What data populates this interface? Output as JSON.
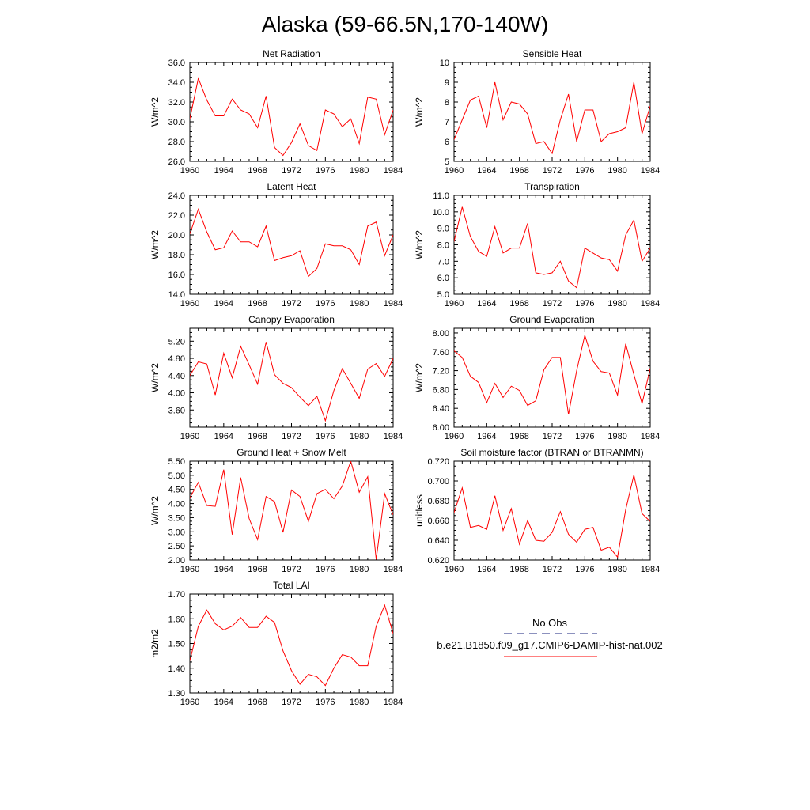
{
  "title": "Alaska (59-66.5N,170-140W)",
  "legend": {
    "entries": [
      {
        "label": "No Obs",
        "color": "#1a237e",
        "dash": true
      },
      {
        "label": "b.e21.B1850.f09_g17.CMIP6-DAMIP-hist-nat.002",
        "color": "#ff0000",
        "dash": false
      }
    ]
  },
  "chart_data": [
    {
      "type": "line",
      "title": "Net Radiation",
      "ylabel": "W/m^2",
      "x": [
        1960,
        1961,
        1962,
        1963,
        1964,
        1965,
        1966,
        1967,
        1968,
        1969,
        1970,
        1971,
        1972,
        1973,
        1974,
        1975,
        1976,
        1977,
        1978,
        1979,
        1980,
        1981,
        1982,
        1983,
        1984
      ],
      "xlim": [
        1960,
        1984
      ],
      "xticks": [
        "1960",
        "1964",
        "1968",
        "1972",
        "1976",
        "1980",
        "1984"
      ],
      "ylim": [
        26,
        36
      ],
      "yticks": [
        "26.0",
        "28.0",
        "30.0",
        "32.0",
        "34.0",
        "36.0"
      ],
      "series": [
        {
          "color": "#ff0000",
          "values": [
            30.3,
            34.4,
            32.2,
            30.6,
            30.6,
            32.3,
            31.2,
            30.8,
            29.4,
            32.6,
            27.4,
            26.6,
            27.9,
            29.8,
            27.6,
            27.1,
            31.2,
            30.8,
            29.5,
            30.3,
            27.8,
            32.5,
            32.3,
            28.7,
            31.2
          ]
        }
      ]
    },
    {
      "type": "line",
      "title": "Sensible Heat",
      "ylabel": "W/m^2",
      "x": [
        1960,
        1961,
        1962,
        1963,
        1964,
        1965,
        1966,
        1967,
        1968,
        1969,
        1970,
        1971,
        1972,
        1973,
        1974,
        1975,
        1976,
        1977,
        1978,
        1979,
        1980,
        1981,
        1982,
        1983,
        1984
      ],
      "xlim": [
        1960,
        1984
      ],
      "xticks": [
        "1960",
        "1964",
        "1968",
        "1972",
        "1976",
        "1980",
        "1984"
      ],
      "ylim": [
        5,
        10
      ],
      "yticks": [
        "5",
        "6",
        "7",
        "8",
        "9",
        "10"
      ],
      "series": [
        {
          "color": "#ff0000",
          "values": [
            6.1,
            7.1,
            8.1,
            8.3,
            6.7,
            9.0,
            7.1,
            8.0,
            7.9,
            7.4,
            5.9,
            6.0,
            5.4,
            7.1,
            8.4,
            6.0,
            7.6,
            7.6,
            6.0,
            6.4,
            6.5,
            6.7,
            9.0,
            6.4,
            7.8
          ]
        }
      ]
    },
    {
      "type": "line",
      "title": "Latent Heat",
      "ylabel": "W/m^2",
      "x": [
        1960,
        1961,
        1962,
        1963,
        1964,
        1965,
        1966,
        1967,
        1968,
        1969,
        1970,
        1971,
        1972,
        1973,
        1974,
        1975,
        1976,
        1977,
        1978,
        1979,
        1980,
        1981,
        1982,
        1983,
        1984
      ],
      "xlim": [
        1960,
        1984
      ],
      "xticks": [
        "1960",
        "1964",
        "1968",
        "1972",
        "1976",
        "1980",
        "1984"
      ],
      "ylim": [
        14,
        24
      ],
      "yticks": [
        "14.0",
        "16.0",
        "18.0",
        "20.0",
        "22.0",
        "24.0"
      ],
      "series": [
        {
          "color": "#ff0000",
          "values": [
            20.1,
            22.6,
            20.3,
            18.5,
            18.7,
            20.4,
            19.3,
            19.3,
            18.8,
            20.9,
            17.4,
            17.7,
            17.9,
            18.4,
            15.8,
            16.6,
            19.1,
            18.9,
            18.9,
            18.5,
            17.0,
            20.9,
            21.3,
            17.9,
            20.0
          ]
        }
      ]
    },
    {
      "type": "line",
      "title": "Transpiration",
      "ylabel": "W/m^2",
      "x": [
        1960,
        1961,
        1962,
        1963,
        1964,
        1965,
        1966,
        1967,
        1968,
        1969,
        1970,
        1971,
        1972,
        1973,
        1974,
        1975,
        1976,
        1977,
        1978,
        1979,
        1980,
        1981,
        1982,
        1983,
        1984
      ],
      "xlim": [
        1960,
        1984
      ],
      "xticks": [
        "1960",
        "1964",
        "1968",
        "1972",
        "1976",
        "1980",
        "1984"
      ],
      "ylim": [
        5,
        11
      ],
      "yticks": [
        "5.0",
        "6.0",
        "7.0",
        "8.0",
        "9.0",
        "10.0",
        "11.0"
      ],
      "series": [
        {
          "color": "#ff0000",
          "values": [
            8.2,
            10.3,
            8.5,
            7.6,
            7.3,
            9.1,
            7.5,
            7.8,
            7.8,
            9.3,
            6.3,
            6.2,
            6.3,
            7.0,
            5.8,
            5.4,
            7.8,
            7.5,
            7.2,
            7.1,
            6.4,
            8.6,
            9.5,
            7.0,
            7.8
          ]
        }
      ]
    },
    {
      "type": "line",
      "title": "Canopy Evaporation",
      "ylabel": "W/m^2",
      "x": [
        1960,
        1961,
        1962,
        1963,
        1964,
        1965,
        1966,
        1967,
        1968,
        1969,
        1970,
        1971,
        1972,
        1973,
        1974,
        1975,
        1976,
        1977,
        1978,
        1979,
        1980,
        1981,
        1982,
        1983,
        1984
      ],
      "xlim": [
        1960,
        1984
      ],
      "xticks": [
        "1960",
        "1964",
        "1968",
        "1972",
        "1976",
        "1980",
        "1984"
      ],
      "ylim": [
        3.2,
        5.5
      ],
      "yticks": [
        "3.60",
        "4.00",
        "4.40",
        "4.80",
        "5.20"
      ],
      "series": [
        {
          "color": "#ff0000",
          "values": [
            4.4,
            4.72,
            4.67,
            3.95,
            4.92,
            4.35,
            5.08,
            4.65,
            4.2,
            5.18,
            4.42,
            4.22,
            4.12,
            3.9,
            3.7,
            3.92,
            3.35,
            4.05,
            4.56,
            4.22,
            3.87,
            4.55,
            4.68,
            4.38,
            4.8
          ]
        }
      ]
    },
    {
      "type": "line",
      "title": "Ground Evaporation",
      "ylabel": "W/m^2",
      "x": [
        1960,
        1961,
        1962,
        1963,
        1964,
        1965,
        1966,
        1967,
        1968,
        1969,
        1970,
        1971,
        1972,
        1973,
        1974,
        1975,
        1976,
        1977,
        1978,
        1979,
        1980,
        1981,
        1982,
        1983,
        1984
      ],
      "xlim": [
        1960,
        1984
      ],
      "xticks": [
        "1960",
        "1964",
        "1968",
        "1972",
        "1976",
        "1980",
        "1984"
      ],
      "ylim": [
        6.0,
        8.1
      ],
      "yticks": [
        "6.00",
        "6.40",
        "6.80",
        "7.20",
        "7.60",
        "8.00"
      ],
      "series": [
        {
          "color": "#ff0000",
          "values": [
            7.62,
            7.48,
            7.08,
            6.95,
            6.52,
            6.93,
            6.63,
            6.87,
            6.78,
            6.46,
            6.56,
            7.22,
            7.48,
            7.48,
            6.27,
            7.2,
            7.95,
            7.4,
            7.18,
            7.15,
            6.68,
            7.77,
            7.12,
            6.5,
            7.25
          ]
        }
      ]
    },
    {
      "type": "line",
      "title": "Ground Heat + Snow Melt",
      "ylabel": "W/m^2",
      "x": [
        1960,
        1961,
        1962,
        1963,
        1964,
        1965,
        1966,
        1967,
        1968,
        1969,
        1970,
        1971,
        1972,
        1973,
        1974,
        1975,
        1976,
        1977,
        1978,
        1979,
        1980,
        1981,
        1982,
        1983,
        1984
      ],
      "xlim": [
        1960,
        1984
      ],
      "xticks": [
        "1960",
        "1964",
        "1968",
        "1972",
        "1976",
        "1980",
        "1984"
      ],
      "ylim": [
        2.0,
        5.5
      ],
      "yticks": [
        "2.00",
        "2.50",
        "3.00",
        "3.50",
        "4.00",
        "4.50",
        "5.00",
        "5.50"
      ],
      "series": [
        {
          "color": "#ff0000",
          "values": [
            4.2,
            4.75,
            3.93,
            3.9,
            5.2,
            2.9,
            4.92,
            3.47,
            2.72,
            4.25,
            4.07,
            2.98,
            4.48,
            4.25,
            3.37,
            4.35,
            4.5,
            4.17,
            4.62,
            5.5,
            4.4,
            4.95,
            2.02,
            4.35,
            3.6
          ]
        }
      ]
    },
    {
      "type": "line",
      "title": "Soil moisture factor (BTRAN or BTRANMN)",
      "ylabel": "unitless",
      "x": [
        1960,
        1961,
        1962,
        1963,
        1964,
        1965,
        1966,
        1967,
        1968,
        1969,
        1970,
        1971,
        1972,
        1973,
        1974,
        1975,
        1976,
        1977,
        1978,
        1979,
        1980,
        1981,
        1982,
        1983,
        1984
      ],
      "xlim": [
        1960,
        1984
      ],
      "xticks": [
        "1960",
        "1964",
        "1968",
        "1972",
        "1976",
        "1980",
        "1984"
      ],
      "ylim": [
        0.62,
        0.72
      ],
      "yticks": [
        "0.620",
        "0.640",
        "0.660",
        "0.680",
        "0.700",
        "0.720"
      ],
      "series": [
        {
          "color": "#ff0000",
          "values": [
            0.668,
            0.693,
            0.653,
            0.655,
            0.651,
            0.685,
            0.65,
            0.672,
            0.636,
            0.66,
            0.64,
            0.639,
            0.648,
            0.669,
            0.646,
            0.638,
            0.651,
            0.653,
            0.63,
            0.633,
            0.623,
            0.671,
            0.706,
            0.667,
            0.659
          ]
        }
      ]
    },
    {
      "type": "line",
      "title": "Total LAI",
      "ylabel": "m2/m2",
      "x": [
        1960,
        1961,
        1962,
        1963,
        1964,
        1965,
        1966,
        1967,
        1968,
        1969,
        1970,
        1971,
        1972,
        1973,
        1974,
        1975,
        1976,
        1977,
        1978,
        1979,
        1980,
        1981,
        1982,
        1983,
        1984
      ],
      "xlim": [
        1960,
        1984
      ],
      "xticks": [
        "1960",
        "1964",
        "1968",
        "1972",
        "1976",
        "1980",
        "1984"
      ],
      "ylim": [
        1.3,
        1.7
      ],
      "yticks": [
        "1.30",
        "1.40",
        "1.50",
        "1.60",
        "1.70"
      ],
      "series": [
        {
          "color": "#ff0000",
          "values": [
            1.43,
            1.57,
            1.635,
            1.58,
            1.555,
            1.57,
            1.605,
            1.565,
            1.565,
            1.61,
            1.585,
            1.47,
            1.39,
            1.335,
            1.375,
            1.365,
            1.33,
            1.4,
            1.455,
            1.445,
            1.41,
            1.41,
            1.57,
            1.655,
            1.54
          ]
        }
      ]
    }
  ]
}
